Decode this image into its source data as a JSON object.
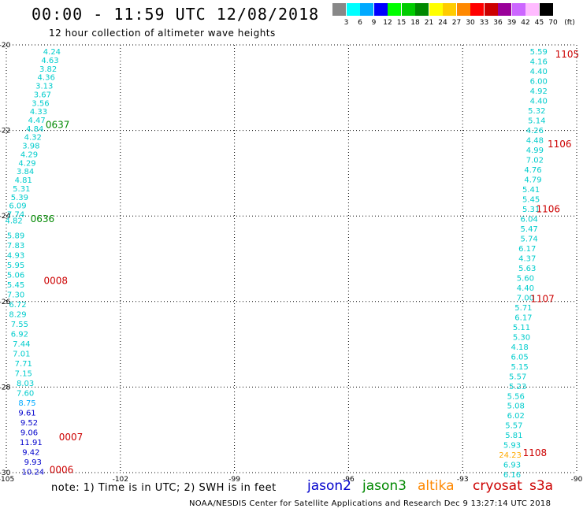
{
  "title": "00:00 - 11:59 UTC 12/08/2018",
  "subtitle": "12 hour collection of altimeter wave heights",
  "scale": {
    "labels": [
      "3",
      "6",
      "9",
      "12",
      "15",
      "18",
      "21",
      "24",
      "27",
      "30",
      "33",
      "36",
      "39",
      "42",
      "45",
      "70",
      "(ft)"
    ],
    "colors": [
      "#888888",
      "#00ffff",
      "#00aaff",
      "#0000ff",
      "#00ff00",
      "#00cc00",
      "#008800",
      "#ffff00",
      "#ffcc00",
      "#ff8800",
      "#ff0000",
      "#cc0000",
      "#990099",
      "#cc66ff",
      "#ffbbff",
      "#000000"
    ]
  },
  "note": "note: 1) Time is in UTC; 2) SWH is in feet",
  "satellites": [
    {
      "name": "jason2",
      "color": "#0000cc"
    },
    {
      "name": "jason3",
      "color": "#008800"
    },
    {
      "name": "altika",
      "color": "#ff8800"
    },
    {
      "name": "cryosat",
      "color": "#cc0000"
    },
    {
      "name": "s3a",
      "color": "#cc0000"
    }
  ],
  "footer": "NOAA/NESDIS Center for Satellite Applications and Research   Dec  9 13:27:14 UTC 2018",
  "chart_data": {
    "type": "scatter",
    "xlim": [
      -105,
      -90
    ],
    "ylim": [
      -30,
      -20
    ],
    "xticks": [
      "-105",
      "-102",
      "-99",
      "-96",
      "-93",
      "-90"
    ],
    "yticks": [
      "-20",
      "-22",
      "-24",
      "-26",
      "-28",
      "-30"
    ],
    "grid": true,
    "left_track": [
      {
        "x": -103.8,
        "y": -20.15,
        "v": "4.24",
        "c": "#00cccc"
      },
      {
        "x": -103.85,
        "y": -20.35,
        "v": "4.63",
        "c": "#00cccc"
      },
      {
        "x": -103.9,
        "y": -20.55,
        "v": "3.82",
        "c": "#00cccc"
      },
      {
        "x": -103.95,
        "y": -20.75,
        "v": "4.36",
        "c": "#00cccc"
      },
      {
        "x": -104.0,
        "y": -20.95,
        "v": "3.13",
        "c": "#00cccc"
      },
      {
        "x": -104.05,
        "y": -21.15,
        "v": "3.67",
        "c": "#00cccc"
      },
      {
        "x": -104.1,
        "y": -21.35,
        "v": "3.56",
        "c": "#00cccc"
      },
      {
        "x": -104.15,
        "y": -21.55,
        "v": "4.33",
        "c": "#00cccc"
      },
      {
        "x": -104.2,
        "y": -21.75,
        "v": "4.47",
        "c": "#00cccc"
      },
      {
        "x": -104.25,
        "y": -21.95,
        "v": "4.84",
        "c": "#00cccc"
      },
      {
        "x": -104.3,
        "y": -22.15,
        "v": "4.32",
        "c": "#00cccc"
      },
      {
        "x": -104.35,
        "y": -22.35,
        "v": "3.98",
        "c": "#00cccc"
      },
      {
        "x": -104.4,
        "y": -22.55,
        "v": "4.29",
        "c": "#00cccc"
      },
      {
        "x": -104.45,
        "y": -22.75,
        "v": "4.29",
        "c": "#00cccc"
      },
      {
        "x": -104.5,
        "y": -22.95,
        "v": "3.84",
        "c": "#00cccc"
      },
      {
        "x": -104.55,
        "y": -23.15,
        "v": "4.81",
        "c": "#00cccc"
      },
      {
        "x": -104.6,
        "y": -23.35,
        "v": "5.31",
        "c": "#00cccc"
      },
      {
        "x": -104.65,
        "y": -23.55,
        "v": "5.39",
        "c": "#00cccc"
      },
      {
        "x": -104.7,
        "y": -23.75,
        "v": "6.09",
        "c": "#00cccc"
      },
      {
        "x": -104.75,
        "y": -23.95,
        "v": "7.74",
        "c": "#00cccc"
      },
      {
        "x": -104.8,
        "y": -24.1,
        "v": "4.82",
        "c": "#00cccc"
      },
      {
        "x": -104.75,
        "y": -24.45,
        "v": "5.89",
        "c": "#00cccc"
      },
      {
        "x": -104.75,
        "y": -24.68,
        "v": "7.83",
        "c": "#00cccc"
      },
      {
        "x": -104.75,
        "y": -24.91,
        "v": "4.93",
        "c": "#00cccc"
      },
      {
        "x": -104.75,
        "y": -25.14,
        "v": "5.95",
        "c": "#00cccc"
      },
      {
        "x": -104.75,
        "y": -25.37,
        "v": "5.06",
        "c": "#00cccc"
      },
      {
        "x": -104.75,
        "y": -25.6,
        "v": "5.45",
        "c": "#00cccc"
      },
      {
        "x": -104.75,
        "y": -25.83,
        "v": "7.30",
        "c": "#00cccc"
      },
      {
        "x": -104.7,
        "y": -26.06,
        "v": "6.72",
        "c": "#00cccc"
      },
      {
        "x": -104.7,
        "y": -26.29,
        "v": "8.29",
        "c": "#00cccc"
      },
      {
        "x": -104.65,
        "y": -26.52,
        "v": "7.55",
        "c": "#00cccc"
      },
      {
        "x": -104.65,
        "y": -26.75,
        "v": "6.92",
        "c": "#00cccc"
      },
      {
        "x": -104.6,
        "y": -26.98,
        "v": "7.44",
        "c": "#00cccc"
      },
      {
        "x": -104.6,
        "y": -27.21,
        "v": "7.01",
        "c": "#00cccc"
      },
      {
        "x": -104.55,
        "y": -27.44,
        "v": "7.71",
        "c": "#00cccc"
      },
      {
        "x": -104.55,
        "y": -27.67,
        "v": "7.15",
        "c": "#00cccc"
      },
      {
        "x": -104.5,
        "y": -27.9,
        "v": "8.03",
        "c": "#00cccc"
      },
      {
        "x": -104.5,
        "y": -28.13,
        "v": "7.60",
        "c": "#00cccc"
      },
      {
        "x": -104.45,
        "y": -28.36,
        "v": "8.75",
        "c": "#00aaff"
      },
      {
        "x": -104.45,
        "y": -28.59,
        "v": "9.61",
        "c": "#0000cc"
      },
      {
        "x": -104.4,
        "y": -28.82,
        "v": "9.52",
        "c": "#0000cc"
      },
      {
        "x": -104.4,
        "y": -29.05,
        "v": "9.06",
        "c": "#0000cc"
      },
      {
        "x": -104.35,
        "y": -29.28,
        "v": "11.91",
        "c": "#0000cc"
      },
      {
        "x": -104.35,
        "y": -29.51,
        "v": "9.42",
        "c": "#0000cc"
      },
      {
        "x": -104.3,
        "y": -29.74,
        "v": "9.93",
        "c": "#0000cc"
      },
      {
        "x": -104.3,
        "y": -29.97,
        "v": "10.24",
        "c": "#0000cc"
      }
    ],
    "right_track": [
      {
        "x": -91.0,
        "y": -20.15,
        "v": "5.59",
        "c": "#00cccc"
      },
      {
        "x": -91.0,
        "y": -20.38,
        "v": "4.16",
        "c": "#00cccc"
      },
      {
        "x": -91.0,
        "y": -20.61,
        "v": "4.40",
        "c": "#00cccc"
      },
      {
        "x": -91.0,
        "y": -20.84,
        "v": "6.00",
        "c": "#00cccc"
      },
      {
        "x": -91.0,
        "y": -21.07,
        "v": "4.92",
        "c": "#00cccc"
      },
      {
        "x": -91.0,
        "y": -21.3,
        "v": "4.40",
        "c": "#00cccc"
      },
      {
        "x": -91.05,
        "y": -21.53,
        "v": "5.32",
        "c": "#00cccc"
      },
      {
        "x": -91.05,
        "y": -21.76,
        "v": "5.14",
        "c": "#00cccc"
      },
      {
        "x": -91.1,
        "y": -21.99,
        "v": "4.26",
        "c": "#00cccc"
      },
      {
        "x": -91.1,
        "y": -22.22,
        "v": "4.48",
        "c": "#00cccc"
      },
      {
        "x": -91.1,
        "y": -22.45,
        "v": "4.99",
        "c": "#00cccc"
      },
      {
        "x": -91.1,
        "y": -22.68,
        "v": "7.02",
        "c": "#00cccc"
      },
      {
        "x": -91.15,
        "y": -22.91,
        "v": "4.76",
        "c": "#00cccc"
      },
      {
        "x": -91.15,
        "y": -23.14,
        "v": "4.79",
        "c": "#00cccc"
      },
      {
        "x": -91.2,
        "y": -23.37,
        "v": "5.41",
        "c": "#00cccc"
      },
      {
        "x": -91.2,
        "y": -23.6,
        "v": "5.45",
        "c": "#00cccc"
      },
      {
        "x": -91.2,
        "y": -23.83,
        "v": "5.31",
        "c": "#00cccc"
      },
      {
        "x": -91.25,
        "y": -24.06,
        "v": "6.04",
        "c": "#00cccc"
      },
      {
        "x": -91.25,
        "y": -24.29,
        "v": "5.47",
        "c": "#00cccc"
      },
      {
        "x": -91.25,
        "y": -24.52,
        "v": "5.74",
        "c": "#00cccc"
      },
      {
        "x": -91.3,
        "y": -24.75,
        "v": "6.17",
        "c": "#00cccc"
      },
      {
        "x": -91.3,
        "y": -24.98,
        "v": "4.37",
        "c": "#00cccc"
      },
      {
        "x": -91.3,
        "y": -25.21,
        "v": "5.63",
        "c": "#00cccc"
      },
      {
        "x": -91.35,
        "y": -25.44,
        "v": "5.60",
        "c": "#00cccc"
      },
      {
        "x": -91.35,
        "y": -25.67,
        "v": "4.40",
        "c": "#00cccc"
      },
      {
        "x": -91.35,
        "y": -25.9,
        "v": "7.00",
        "c": "#00cccc"
      },
      {
        "x": -91.4,
        "y": -26.13,
        "v": "5.71",
        "c": "#00cccc"
      },
      {
        "x": -91.4,
        "y": -26.36,
        "v": "6.17",
        "c": "#00cccc"
      },
      {
        "x": -91.45,
        "y": -26.59,
        "v": "5.11",
        "c": "#00cccc"
      },
      {
        "x": -91.45,
        "y": -26.82,
        "v": "5.30",
        "c": "#00cccc"
      },
      {
        "x": -91.5,
        "y": -27.05,
        "v": "4.18",
        "c": "#00cccc"
      },
      {
        "x": -91.5,
        "y": -27.28,
        "v": "6.05",
        "c": "#00cccc"
      },
      {
        "x": -91.5,
        "y": -27.51,
        "v": "5.15",
        "c": "#00cccc"
      },
      {
        "x": -91.55,
        "y": -27.74,
        "v": "5.57",
        "c": "#00cccc"
      },
      {
        "x": -91.55,
        "y": -27.97,
        "v": "5.23",
        "c": "#00cccc"
      },
      {
        "x": -91.6,
        "y": -28.2,
        "v": "5.56",
        "c": "#00cccc"
      },
      {
        "x": -91.6,
        "y": -28.43,
        "v": "5.08",
        "c": "#00cccc"
      },
      {
        "x": -91.6,
        "y": -28.66,
        "v": "6.02",
        "c": "#00cccc"
      },
      {
        "x": -91.65,
        "y": -28.89,
        "v": "5.57",
        "c": "#00cccc"
      },
      {
        "x": -91.65,
        "y": -29.12,
        "v": "5.81",
        "c": "#00cccc"
      },
      {
        "x": -91.7,
        "y": -29.35,
        "v": "5.93",
        "c": "#00cccc"
      },
      {
        "x": -91.75,
        "y": -29.58,
        "v": "24.23",
        "c": "#ffaa00"
      },
      {
        "x": -91.7,
        "y": -29.81,
        "v": "6.93",
        "c": "#00cccc"
      },
      {
        "x": -91.7,
        "y": -30.04,
        "v": "6.16",
        "c": "#00cccc"
      }
    ],
    "time_labels": [
      {
        "x": -103.65,
        "y": -21.85,
        "t": "0637",
        "c": "#008800"
      },
      {
        "x": -104.05,
        "y": -24.05,
        "t": "0636",
        "c": "#008800"
      },
      {
        "x": -103.7,
        "y": -25.5,
        "t": "0008",
        "c": "#cc0000"
      },
      {
        "x": -103.3,
        "y": -29.15,
        "t": "0007",
        "c": "#cc0000"
      },
      {
        "x": -103.55,
        "y": -29.92,
        "t": "0006",
        "c": "#cc0000"
      },
      {
        "x": -90.25,
        "y": -20.2,
        "t": "1105",
        "c": "#cc0000"
      },
      {
        "x": -90.45,
        "y": -22.3,
        "t": "1106",
        "c": "#cc0000"
      },
      {
        "x": -90.75,
        "y": -23.82,
        "t": "1106",
        "c": "#cc0000"
      },
      {
        "x": -90.9,
        "y": -25.92,
        "t": "1107",
        "c": "#cc0000"
      },
      {
        "x": -91.1,
        "y": -29.52,
        "t": "1108",
        "c": "#cc0000"
      }
    ]
  }
}
